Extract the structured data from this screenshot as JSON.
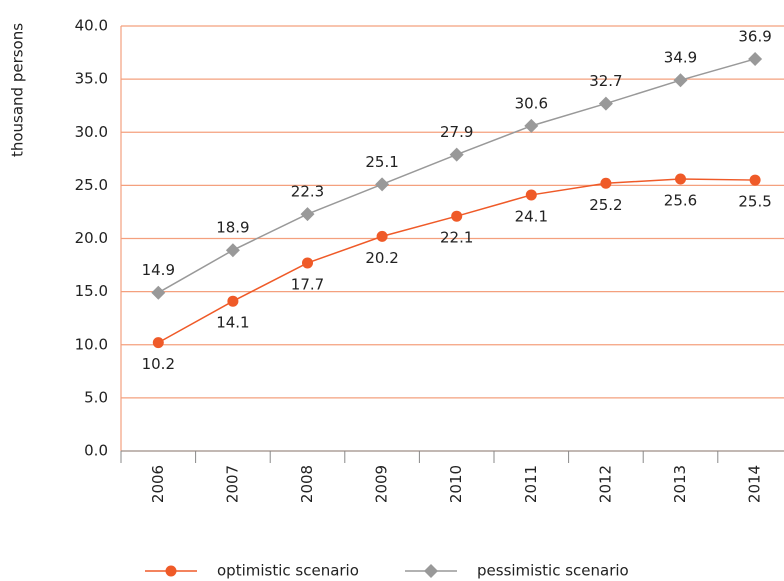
{
  "chart_data": {
    "type": "line",
    "y_label": "thousand persons",
    "categories": [
      "2006",
      "2007",
      "2008",
      "2009",
      "2010",
      "2011",
      "2012",
      "2013",
      "2014"
    ],
    "series": [
      {
        "name": "optimistic scenario",
        "color": "#ef5a28",
        "marker": "circle",
        "values": [
          10.2,
          14.1,
          17.7,
          20.2,
          22.1,
          24.1,
          25.2,
          25.6,
          25.5
        ]
      },
      {
        "name": "pessimistic scenario",
        "color": "#999999",
        "marker": "diamond",
        "values": [
          14.9,
          18.9,
          22.3,
          25.1,
          27.9,
          30.6,
          32.7,
          34.9,
          36.9
        ]
      }
    ],
    "ylim": [
      0,
      40
    ],
    "yticks": [
      {
        "value": 0,
        "label": "0.0"
      },
      {
        "value": 5,
        "label": "5.0"
      },
      {
        "value": 10,
        "label": "10.0"
      },
      {
        "value": 15,
        "label": "15.0"
      },
      {
        "value": 20,
        "label": "20.0"
      },
      {
        "value": 25,
        "label": "25.0"
      },
      {
        "value": 30,
        "label": "30.0"
      },
      {
        "value": 35,
        "label": "35.0"
      },
      {
        "value": 40,
        "label": "40.0"
      }
    ],
    "grid": true,
    "grid_color": "#f4a07e",
    "legend": "bottom"
  }
}
